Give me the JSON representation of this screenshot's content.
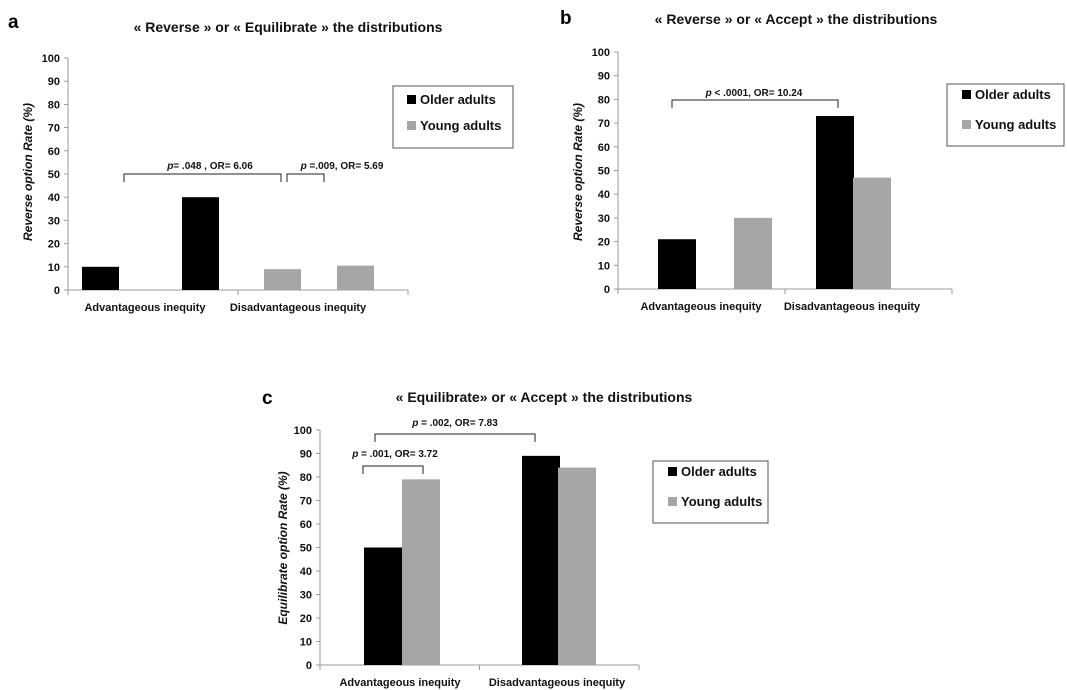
{
  "colors": {
    "older": "#000000",
    "young": "#a6a6a6"
  },
  "chart_data": [
    {
      "type": "bar",
      "panel_label": "a",
      "title": "« Reverse » or « Equilibrate » the distributions",
      "ylabel": "Reverse option Rate (%)",
      "xlabel": "",
      "ylim": [
        0,
        100
      ],
      "yticks": [
        "0",
        "10",
        "20",
        "30",
        "40",
        "50",
        "60",
        "70",
        "80",
        "90",
        "100"
      ],
      "categories": [
        "Advantageous inequity",
        "Disadvantageous inequity"
      ],
      "series": [
        {
          "name": "Older adults",
          "values": [
            10,
            40
          ]
        },
        {
          "name": "Young adults",
          "values": [
            9,
            10.5
          ]
        }
      ],
      "legend": "right",
      "grid": false,
      "annotations": [
        {
          "p": "p",
          "text": "= .048 , OR= 6.06"
        },
        {
          "p": "p",
          "text": " =.009, OR= 5.69"
        }
      ]
    },
    {
      "type": "bar",
      "panel_label": "b",
      "title": "« Reverse » or « Accept » the distributions",
      "ylabel": "Reverse option Rate (%)",
      "xlabel": "",
      "ylim": [
        0,
        100
      ],
      "yticks": [
        "0",
        "10",
        "20",
        "30",
        "40",
        "50",
        "60",
        "70",
        "80",
        "90",
        "100"
      ],
      "categories": [
        "Advantageous inequity",
        "Disadvantageous inequity"
      ],
      "series": [
        {
          "name": "Older adults",
          "values": [
            21,
            73
          ]
        },
        {
          "name": "Young adults",
          "values": [
            30,
            47
          ]
        }
      ],
      "legend": "right",
      "grid": false,
      "annotations": [
        {
          "p": "p",
          "text": " < .0001, OR= 10.24"
        }
      ]
    },
    {
      "type": "bar",
      "panel_label": "c",
      "title": "« Equilibrate» or « Accept » the distributions",
      "ylabel": "Equilibrate option Rate (%)",
      "xlabel": "",
      "ylim": [
        0,
        100
      ],
      "yticks": [
        "0",
        "10",
        "20",
        "30",
        "40",
        "50",
        "60",
        "70",
        "80",
        "90",
        "100"
      ],
      "categories": [
        "Advantageous inequity",
        "Disadvantageous inequity"
      ],
      "series": [
        {
          "name": "Older adults",
          "values": [
            50,
            89
          ]
        },
        {
          "name": "Young adults",
          "values": [
            79,
            84
          ]
        }
      ],
      "legend": "right",
      "grid": false,
      "annotations": [
        {
          "p": "p",
          "text": " = .002, OR= 7.83"
        },
        {
          "p": "p",
          "text": " = .001, OR= 3.72"
        }
      ]
    }
  ]
}
